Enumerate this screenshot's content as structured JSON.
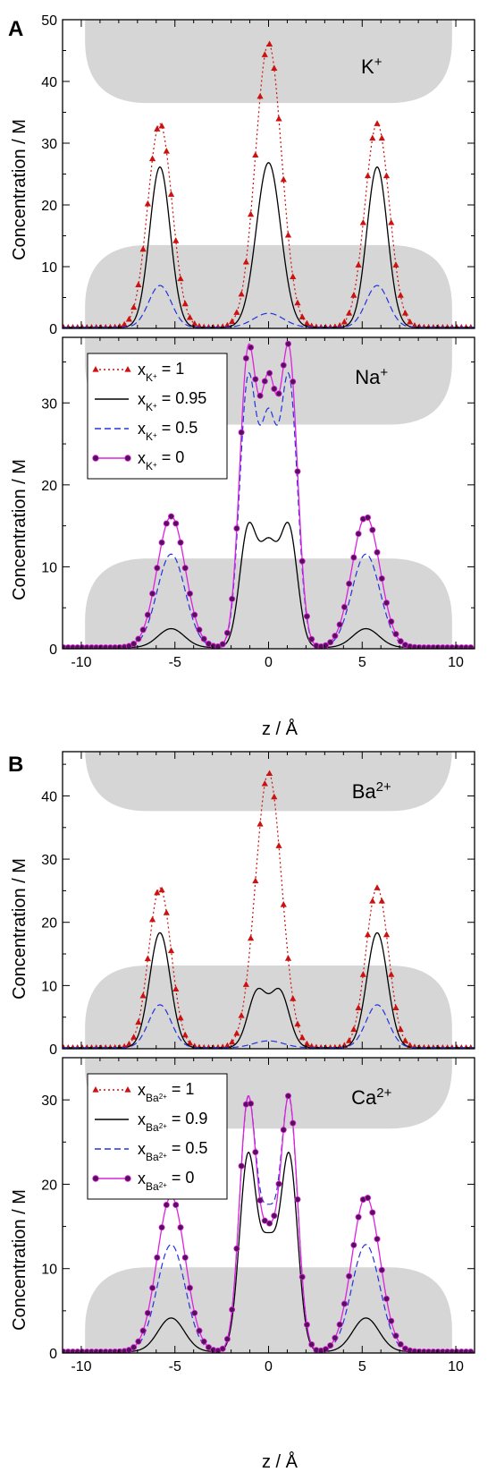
{
  "panels": [
    {
      "letter": "A",
      "y_axis_label": "Concentration / M"
    },
    {
      "letter": "B",
      "y_axis_label": "Concentration / M"
    }
  ],
  "x_axis_label": "z / Å",
  "x_tick_labels": [
    "-10",
    "-5",
    "0",
    "5",
    "10"
  ],
  "colors": {
    "red": "#cc1111",
    "black": "#000000",
    "blue": "#2233dd",
    "magenta": "#dd22dd",
    "marker": "#55115a",
    "gray": "#d6d6d6"
  },
  "chart_data": [
    {
      "type": "line",
      "ion": "K",
      "ion_charge": "+",
      "xlim": [
        -11,
        11
      ],
      "ylim": [
        0,
        50
      ],
      "y_ticks": [
        0,
        10,
        20,
        30,
        40,
        50
      ],
      "series": [
        {
          "x_base": "K",
          "x_sub": "+",
          "value": "1",
          "style": "red-dotted-triangles",
          "peaks": [
            [
              -5.8,
              33,
              0.65
            ],
            [
              0,
              46,
              0.7
            ],
            [
              5.8,
              33,
              0.65
            ]
          ]
        },
        {
          "x_base": "K",
          "x_sub": "+",
          "value": "0.95",
          "style": "black-solid",
          "peaks": [
            [
              -5.8,
              26,
              0.55
            ],
            [
              0,
              26.7,
              0.65
            ],
            [
              5.8,
              26,
              0.55
            ]
          ]
        },
        {
          "x_base": "K",
          "x_sub": "+",
          "value": "0.5",
          "style": "blue-dashed",
          "peaks": [
            [
              -5.8,
              6.8,
              0.6
            ],
            [
              0,
              2.3,
              0.8
            ],
            [
              5.8,
              6.8,
              0.6
            ]
          ]
        }
      ]
    },
    {
      "type": "line",
      "ion": "Na",
      "ion_charge": "+",
      "xlim": [
        -11,
        11
      ],
      "ylim": [
        0,
        38
      ],
      "y_ticks": [
        0,
        10,
        20,
        30
      ],
      "legend": "upper-left",
      "series": [
        {
          "x_base": "K",
          "x_sub": "+",
          "value": "1",
          "style": "red-dotted-triangles",
          "peaks": []
        },
        {
          "x_base": "K",
          "x_sub": "+",
          "value": "0.95",
          "style": "black-solid",
          "peaks": [
            [
              -5.2,
              2.3,
              0.7
            ],
            [
              -1.1,
              14,
              0.45
            ],
            [
              0,
              12,
              0.5
            ],
            [
              1.1,
              14,
              0.45
            ],
            [
              5.2,
              2.3,
              0.7
            ]
          ]
        },
        {
          "x_base": "K",
          "x_sub": "+",
          "value": "0.5",
          "style": "blue-dashed",
          "peaks": [
            [
              -5.2,
              11.4,
              0.75
            ],
            [
              -1.1,
              32,
              0.45
            ],
            [
              0,
              26,
              0.45
            ],
            [
              1.1,
              32,
              0.45
            ],
            [
              5.2,
              11.4,
              0.75
            ]
          ]
        },
        {
          "x_base": "K",
          "x_sub": "+",
          "value": "0",
          "style": "magenta-solid-dots",
          "peaks": [
            [
              -5.2,
              16,
              0.75
            ],
            [
              -1.1,
              35.3,
              0.45
            ],
            [
              0,
              30,
              0.45
            ],
            [
              1.1,
              35.3,
              0.45
            ],
            [
              5.2,
              16,
              0.75
            ]
          ]
        }
      ]
    },
    {
      "type": "line",
      "ion": "Ba",
      "ion_charge": "2+",
      "xlim": [
        -11,
        11
      ],
      "ylim": [
        0,
        47
      ],
      "y_ticks": [
        0,
        10,
        20,
        30,
        40
      ],
      "series": [
        {
          "x_base": "Ba",
          "x_sub": "2+",
          "value": "1",
          "style": "red-dotted-triangles",
          "peaks": [
            [
              -5.8,
              25.3,
              0.6
            ],
            [
              0,
              43.5,
              0.7
            ],
            [
              5.8,
              25.3,
              0.6
            ]
          ]
        },
        {
          "x_base": "Ba",
          "x_sub": "2+",
          "value": "0.9",
          "style": "black-solid",
          "peaks": [
            [
              -5.8,
              18.2,
              0.55
            ],
            [
              -0.6,
              8.8,
              0.5
            ],
            [
              0.6,
              8.8,
              0.5
            ],
            [
              5.8,
              18.2,
              0.55
            ]
          ]
        },
        {
          "x_base": "Ba",
          "x_sub": "2+",
          "value": "0.5",
          "style": "blue-dashed",
          "peaks": [
            [
              -5.8,
              6.8,
              0.6
            ],
            [
              0,
              1.1,
              0.8
            ],
            [
              5.8,
              6.8,
              0.6
            ]
          ]
        }
      ]
    },
    {
      "type": "line",
      "ion": "Ca",
      "ion_charge": "2+",
      "xlim": [
        -11,
        11
      ],
      "ylim": [
        0,
        35
      ],
      "y_ticks": [
        0,
        10,
        20,
        30
      ],
      "legend": "upper-left",
      "series": [
        {
          "x_base": "Ba",
          "x_sub": "2+",
          "value": "1",
          "style": "red-dotted-triangles",
          "peaks": []
        },
        {
          "x_base": "Ba",
          "x_sub": "2+",
          "value": "0.9",
          "style": "black-solid",
          "peaks": [
            [
              -5.2,
              4,
              0.7
            ],
            [
              -1.1,
              23,
              0.45
            ],
            [
              0,
              11.8,
              0.45
            ],
            [
              1.1,
              23,
              0.45
            ],
            [
              5.2,
              4,
              0.7
            ]
          ]
        },
        {
          "x_base": "Ba",
          "x_sub": "2+",
          "value": "0.5",
          "style": "blue-dashed",
          "peaks": [
            [
              -5.2,
              12.7,
              0.75
            ],
            [
              -1.1,
              29.5,
              0.45
            ],
            [
              0,
              14.5,
              0.45
            ],
            [
              1.1,
              29.5,
              0.45
            ],
            [
              5.2,
              12.7,
              0.75
            ]
          ]
        },
        {
          "x_base": "Ba",
          "x_sub": "2+",
          "value": "0",
          "style": "magenta-solid-dots",
          "peaks": [
            [
              -5.2,
              18.4,
              0.75
            ],
            [
              -1.1,
              29.7,
              0.45
            ],
            [
              0,
              12.2,
              0.45
            ],
            [
              1.1,
              29.7,
              0.45
            ],
            [
              5.2,
              18.4,
              0.75
            ]
          ]
        }
      ]
    }
  ]
}
